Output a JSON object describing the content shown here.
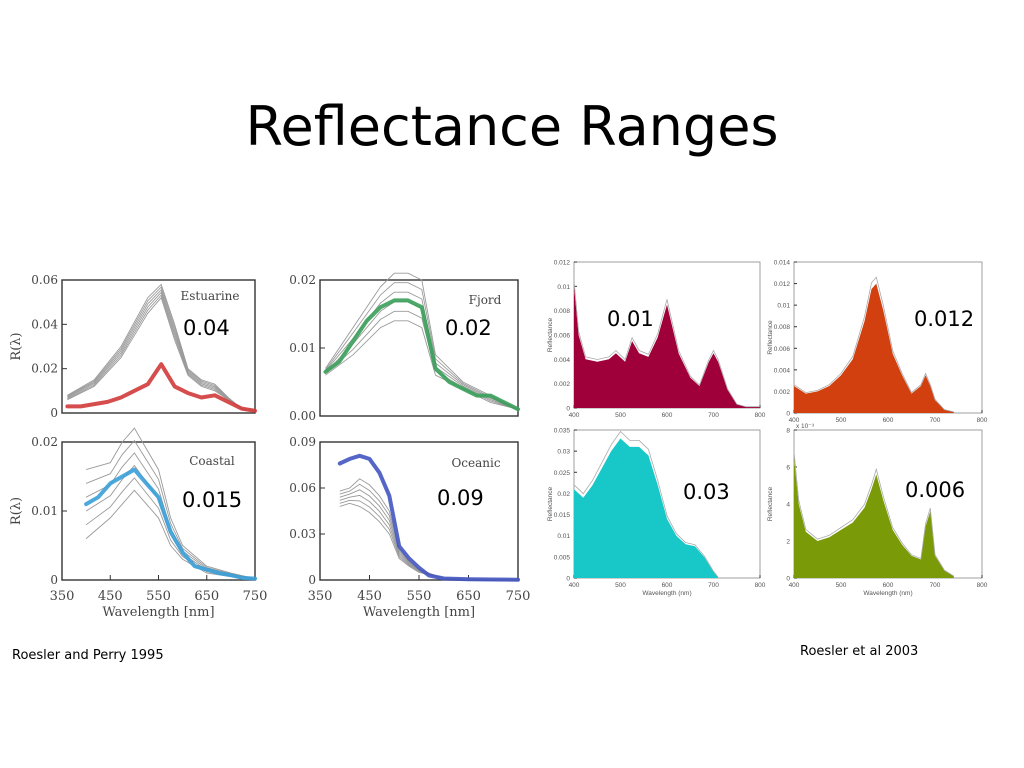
{
  "slide": {
    "title": "Reflectance Ranges",
    "citation_left": "Roesler and Perry 1995",
    "citation_right": "Roesler et al 2003"
  },
  "chart_data": [
    {
      "id": "estuarine",
      "type": "line",
      "title": "Estuarine",
      "annotation": "0.04",
      "xlabel": "",
      "ylabel": "R(λ)",
      "xlim": [
        390,
        750
      ],
      "ylim": [
        0,
        0.06
      ],
      "xticks": [],
      "xtick_labels": [],
      "yticks": [
        0,
        0.02,
        0.04,
        0.06
      ],
      "ytick_labels": [
        "0",
        "0.02",
        "0.04",
        "0.06"
      ],
      "highlight_color": "#d03a3a",
      "highlight": {
        "x": [
          400,
          425,
          450,
          475,
          500,
          525,
          550,
          575,
          600,
          625,
          650,
          675,
          700,
          725,
          750
        ],
        "y": [
          0.003,
          0.003,
          0.004,
          0.005,
          0.007,
          0.01,
          0.013,
          0.022,
          0.012,
          0.009,
          0.007,
          0.008,
          0.005,
          0.002,
          0.001
        ]
      },
      "envelope": [
        {
          "x": [
            400,
            450,
            500,
            550,
            575,
            600,
            625,
            650,
            675,
            700,
            725,
            750
          ],
          "y": [
            0.008,
            0.015,
            0.03,
            0.052,
            0.058,
            0.04,
            0.02,
            0.015,
            0.013,
            0.007,
            0.002,
            0.001
          ]
        },
        {
          "x": [
            400,
            450,
            500,
            550,
            575,
            600,
            625,
            650,
            675,
            700,
            725,
            750
          ],
          "y": [
            0.006,
            0.012,
            0.025,
            0.045,
            0.052,
            0.033,
            0.017,
            0.012,
            0.01,
            0.006,
            0.002,
            0.001
          ]
        }
      ]
    },
    {
      "id": "fjord",
      "type": "line",
      "title": "Fjord",
      "annotation": "0.02",
      "xlabel": "",
      "ylabel": "",
      "xlim": [
        390,
        750
      ],
      "ylim": [
        0,
        0.02
      ],
      "xticks": [],
      "xtick_labels": [],
      "yticks": [
        0,
        0.01,
        0.02
      ],
      "ytick_labels": [
        "0.00",
        "0.01",
        "0.02"
      ],
      "highlight_color": "#3aa05a",
      "highlight": {
        "x": [
          400,
          425,
          450,
          475,
          500,
          525,
          550,
          575,
          600,
          625,
          650,
          675,
          700,
          725,
          750
        ],
        "y": [
          0.0065,
          0.008,
          0.011,
          0.014,
          0.016,
          0.017,
          0.017,
          0.016,
          0.007,
          0.005,
          0.004,
          0.003,
          0.003,
          0.002,
          0.001
        ]
      },
      "envelope": [
        {
          "x": [
            400,
            450,
            500,
            525,
            550,
            575,
            600,
            650,
            700,
            750
          ],
          "y": [
            0.007,
            0.013,
            0.019,
            0.021,
            0.021,
            0.02,
            0.009,
            0.005,
            0.003,
            0.001
          ]
        },
        {
          "x": [
            400,
            450,
            500,
            525,
            550,
            575,
            600,
            650,
            700,
            750
          ],
          "y": [
            0.006,
            0.009,
            0.013,
            0.014,
            0.014,
            0.013,
            0.006,
            0.004,
            0.002,
            0.001
          ]
        }
      ]
    },
    {
      "id": "coastal",
      "type": "line",
      "title": "Coastal",
      "annotation": "0.015",
      "xlabel": "Wavelength [nm]",
      "ylabel": "R(λ)",
      "xlim": [
        350,
        750
      ],
      "ylim": [
        0,
        0.02
      ],
      "xticks": [
        350,
        450,
        550,
        650,
        750
      ],
      "xtick_labels": [
        "350",
        "450",
        "550",
        "650",
        "750"
      ],
      "yticks": [
        0,
        0.01,
        0.02
      ],
      "ytick_labels": [
        "0",
        "0.01",
        "0.02"
      ],
      "highlight_color": "#3aa0d8",
      "highlight": {
        "x": [
          400,
          425,
          450,
          475,
          500,
          525,
          550,
          575,
          600,
          625,
          650,
          675,
          700,
          725,
          750
        ],
        "y": [
          0.011,
          0.012,
          0.014,
          0.015,
          0.016,
          0.014,
          0.012,
          0.007,
          0.004,
          0.002,
          0.0015,
          0.001,
          0.0007,
          0.0003,
          0.0002
        ]
      },
      "envelope": [
        {
          "x": [
            400,
            450,
            475,
            500,
            525,
            550,
            575,
            600,
            650,
            700,
            750
          ],
          "y": [
            0.016,
            0.017,
            0.02,
            0.022,
            0.019,
            0.016,
            0.009,
            0.005,
            0.002,
            0.001,
            0.0002
          ]
        },
        {
          "x": [
            400,
            450,
            475,
            500,
            525,
            550,
            575,
            600,
            650,
            700,
            750
          ],
          "y": [
            0.006,
            0.009,
            0.011,
            0.013,
            0.011,
            0.009,
            0.005,
            0.003,
            0.001,
            0.0005,
            0.0001
          ]
        }
      ]
    },
    {
      "id": "oceanic",
      "type": "line",
      "title": "Oceanic",
      "annotation": "0.09",
      "xlabel": "Wavelength [nm]",
      "ylabel": "",
      "xlim": [
        350,
        750
      ],
      "ylim": [
        0,
        0.09
      ],
      "xticks": [
        350,
        450,
        550,
        650,
        750
      ],
      "xtick_labels": [
        "350",
        "450",
        "550",
        "650",
        "750"
      ],
      "yticks": [
        0,
        0.03,
        0.06,
        0.09
      ],
      "ytick_labels": [
        "0",
        "0.03",
        "0.06",
        "0.09"
      ],
      "highlight_color": "#4455c0",
      "highlight": {
        "x": [
          390,
          410,
          430,
          450,
          470,
          490,
          510,
          530,
          550,
          570,
          600,
          650,
          700,
          750
        ],
        "y": [
          0.076,
          0.079,
          0.081,
          0.079,
          0.07,
          0.055,
          0.022,
          0.014,
          0.008,
          0.003,
          0.001,
          0.0005,
          0.0003,
          0.0002
        ]
      },
      "envelope": [
        {
          "x": [
            390,
            410,
            430,
            450,
            470,
            490,
            510,
            530,
            550,
            600,
            650,
            750
          ],
          "y": [
            0.058,
            0.06,
            0.066,
            0.062,
            0.055,
            0.045,
            0.02,
            0.012,
            0.007,
            0.001,
            0.0005,
            0.0002
          ]
        },
        {
          "x": [
            390,
            410,
            430,
            450,
            470,
            490,
            510,
            530,
            550,
            600,
            650,
            750
          ],
          "y": [
            0.048,
            0.05,
            0.048,
            0.044,
            0.038,
            0.03,
            0.014,
            0.009,
            0.005,
            0.001,
            0.0004,
            0.0002
          ]
        }
      ]
    },
    {
      "id": "panel-maroon",
      "type": "area",
      "title": "",
      "annotation": "0.01",
      "xlabel": "",
      "ylabel": "Reflectance",
      "xlim": [
        400,
        800
      ],
      "ylim": [
        0,
        0.012
      ],
      "xticks": [
        400,
        500,
        600,
        700,
        800
      ],
      "xtick_labels": [
        "400",
        "500",
        "600",
        "700",
        "800"
      ],
      "yticks": [
        0,
        0.002,
        0.004,
        0.006,
        0.008,
        0.01,
        0.012
      ],
      "ytick_labels": [
        "0",
        "0.002",
        "0.004",
        "0.006",
        "0.008",
        "0.01",
        "0.012"
      ],
      "fill_color": "#a0003a",
      "area": {
        "x": [
          400,
          410,
          425,
          450,
          475,
          490,
          510,
          525,
          540,
          560,
          580,
          600,
          625,
          650,
          670,
          690,
          700,
          710,
          730,
          750,
          770,
          800
        ],
        "y": [
          0.01,
          0.006,
          0.004,
          0.0038,
          0.004,
          0.0045,
          0.0038,
          0.0055,
          0.0045,
          0.0042,
          0.0058,
          0.0085,
          0.0045,
          0.0025,
          0.0018,
          0.0038,
          0.0045,
          0.0038,
          0.0015,
          0.0003,
          0.0001,
          0.0001
        ]
      }
    },
    {
      "id": "panel-orange",
      "type": "area",
      "title": "",
      "annotation": "0.012",
      "xlabel": "",
      "ylabel": "Reflectance",
      "xlim": [
        400,
        800
      ],
      "ylim": [
        0,
        0.014
      ],
      "xticks": [
        400,
        500,
        600,
        700,
        800
      ],
      "xtick_labels": [
        "400",
        "500",
        "600",
        "700",
        "800"
      ],
      "yticks": [
        0,
        0.002,
        0.004,
        0.006,
        0.008,
        0.01,
        0.012,
        0.014
      ],
      "ytick_labels": [
        "0",
        "0.002",
        "0.004",
        "0.006",
        "0.008",
        "0.01",
        "0.012",
        "0.014"
      ],
      "fill_color": "#d24010",
      "area": {
        "x": [
          400,
          425,
          450,
          475,
          500,
          525,
          550,
          565,
          575,
          590,
          610,
          630,
          650,
          670,
          680,
          690,
          700,
          720,
          740
        ],
        "y": [
          0.0025,
          0.0018,
          0.002,
          0.0025,
          0.0035,
          0.005,
          0.0085,
          0.0115,
          0.012,
          0.0095,
          0.0055,
          0.0035,
          0.0018,
          0.0025,
          0.0035,
          0.0025,
          0.0012,
          0.0003,
          0.0001
        ]
      }
    },
    {
      "id": "panel-cyan",
      "type": "area",
      "title": "",
      "annotation": "0.03",
      "xlabel": "Wavelength (nm)",
      "ylabel": "Reflectance",
      "xlim": [
        400,
        800
      ],
      "ylim": [
        0,
        0.035
      ],
      "xticks": [
        400,
        500,
        600,
        700,
        800
      ],
      "xtick_labels": [
        "400",
        "500",
        "600",
        "700",
        "800"
      ],
      "yticks": [
        0,
        0.005,
        0.01,
        0.015,
        0.02,
        0.025,
        0.03,
        0.035
      ],
      "ytick_labels": [
        "0",
        "0.005",
        "0.01",
        "0.015",
        "0.02",
        "0.025",
        "0.03",
        "0.035"
      ],
      "fill_color": "#18c8c8",
      "area": {
        "x": [
          400,
          420,
          440,
          460,
          480,
          500,
          520,
          540,
          560,
          580,
          600,
          620,
          640,
          660,
          680,
          700,
          710
        ],
        "y": [
          0.021,
          0.019,
          0.022,
          0.026,
          0.03,
          0.033,
          0.031,
          0.031,
          0.029,
          0.022,
          0.014,
          0.01,
          0.008,
          0.0075,
          0.005,
          0.0015,
          0.0002
        ]
      }
    },
    {
      "id": "panel-olive",
      "type": "area",
      "title": "",
      "annotation": "0.006",
      "xlabel": "Wavelength (nm)",
      "ylabel": "Reflectance",
      "xlim": [
        400,
        800
      ],
      "ylim": [
        0,
        8
      ],
      "xticks": [
        400,
        500,
        600,
        700,
        800
      ],
      "xtick_labels": [
        "400",
        "500",
        "600",
        "700",
        "800"
      ],
      "yticks": [
        0,
        2,
        4,
        6,
        8
      ],
      "ytick_labels": [
        "0",
        "2",
        "4",
        "6",
        "8"
      ],
      "y_multiplier": "x 10⁻³",
      "fill_color": "#7a9a08",
      "area": {
        "x": [
          400,
          410,
          425,
          450,
          475,
          500,
          525,
          550,
          565,
          575,
          590,
          610,
          630,
          650,
          670,
          680,
          690,
          700,
          720,
          740
        ],
        "y": [
          6.5,
          4.0,
          2.5,
          2.0,
          2.2,
          2.6,
          3.0,
          3.8,
          4.8,
          5.6,
          4.2,
          2.6,
          1.8,
          1.2,
          1.0,
          2.8,
          3.6,
          1.2,
          0.4,
          0.1
        ]
      }
    }
  ]
}
